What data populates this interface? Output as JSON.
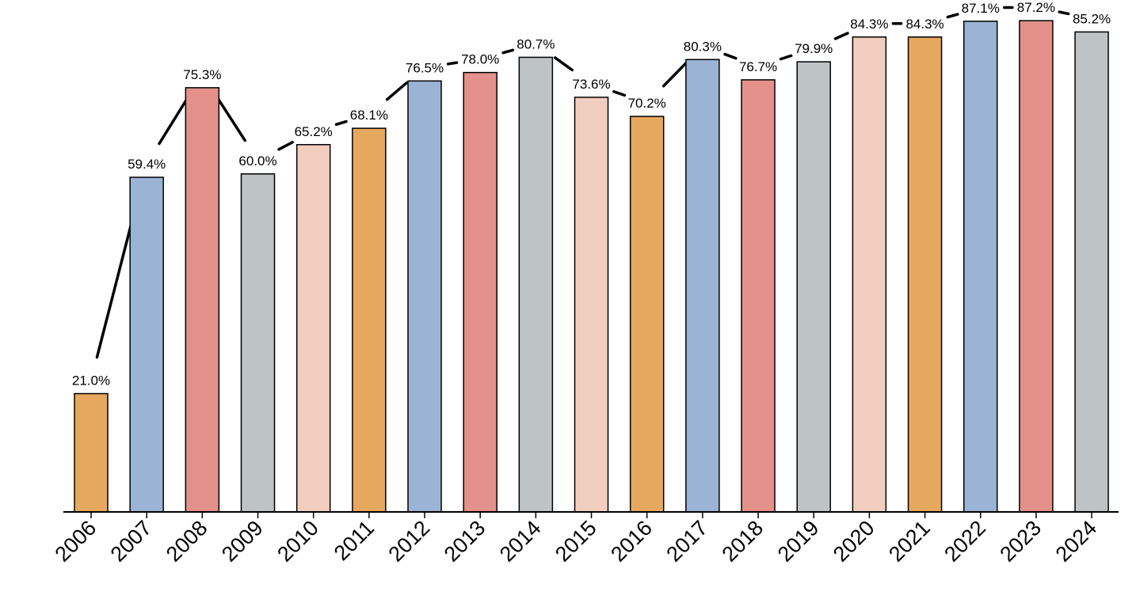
{
  "chart_data": {
    "type": "bar",
    "title": "",
    "xlabel": "",
    "ylabel": "",
    "ylim": [
      0,
      100
    ],
    "grid": false,
    "value_suffix": "%",
    "categories": [
      "2006",
      "2007",
      "2008",
      "2009",
      "2010",
      "2011",
      "2012",
      "2013",
      "2014",
      "2015",
      "2016",
      "2017",
      "2018",
      "2019",
      "2020",
      "2021",
      "2022",
      "2023",
      "2024"
    ],
    "values": [
      21.0,
      59.4,
      75.3,
      60.0,
      65.2,
      68.1,
      76.5,
      78.0,
      80.7,
      73.6,
      70.2,
      80.3,
      76.7,
      79.9,
      84.3,
      84.3,
      87.1,
      87.2,
      85.2
    ],
    "labels": [
      "21.0%",
      "59.4%",
      "75.3%",
      "60.0%",
      "65.2%",
      "68.1%",
      "76.5%",
      "78.0%",
      "80.7%",
      "73.6%",
      "70.2%",
      "80.3%",
      "76.7%",
      "79.9%",
      "84.3%",
      "84.3%",
      "87.1%",
      "87.2%",
      "85.2%"
    ],
    "colors": [
      "#E6A85F",
      "#9BB3D4",
      "#E3918A",
      "#BEC3C6",
      "#F2CEC0"
    ],
    "trend_line": true
  }
}
